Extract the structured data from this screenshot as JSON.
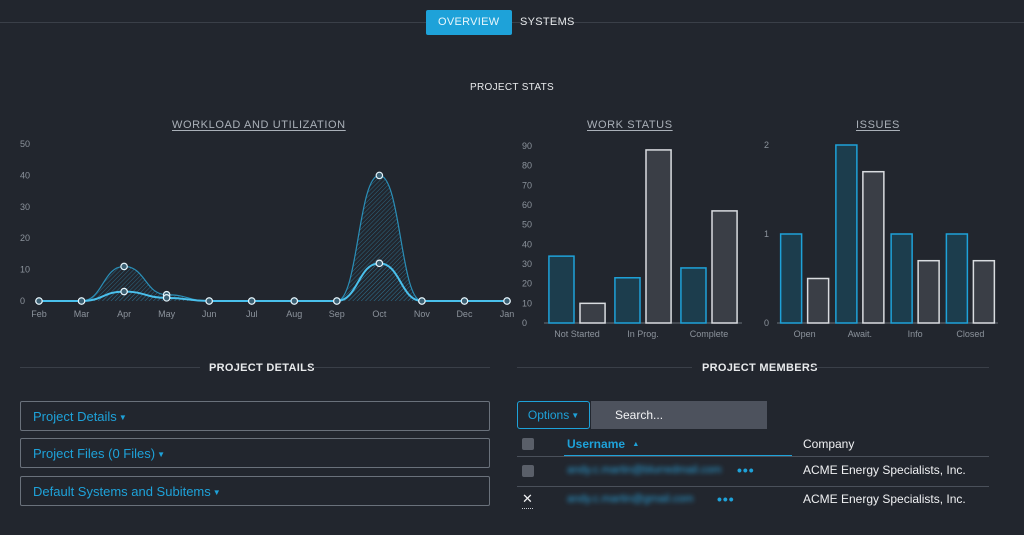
{
  "tabs": {
    "overview": "OVERVIEW",
    "systems": "SYSTEMS"
  },
  "headings": {
    "project_stats": "PROJECT STATS",
    "project_details": "PROJECT DETAILS",
    "project_members": "PROJECT MEMBERS"
  },
  "colors": {
    "accent": "#1ea2d9",
    "series_b": "#ffffff",
    "background": "#22262e"
  },
  "chart_data": [
    {
      "type": "area",
      "title": "WORKLOAD AND UTILIZATION",
      "categories": [
        "Feb",
        "Mar",
        "Apr",
        "May",
        "Jun",
        "Jul",
        "Aug",
        "Sep",
        "Oct",
        "Nov",
        "Dec",
        "Jan"
      ],
      "series": [
        {
          "values": [
            0,
            0,
            11,
            2,
            0,
            0,
            0,
            0,
            40,
            0,
            0,
            0
          ]
        },
        {
          "values": [
            0,
            0,
            3,
            1,
            0,
            0,
            0,
            0,
            12,
            0,
            0,
            0
          ]
        }
      ],
      "yticks": [
        "50",
        "40",
        "30",
        "20",
        "10",
        "0"
      ],
      "ylim": [
        0,
        50
      ],
      "grid": false
    },
    {
      "type": "bar",
      "title": "WORK STATUS",
      "categories": [
        "Not Started",
        "In Prog.",
        "Complete"
      ],
      "series": [
        {
          "values": [
            34,
            23,
            28
          ]
        },
        {
          "values": [
            10,
            88,
            57
          ]
        }
      ],
      "yticks": [
        "90",
        "80",
        "70",
        "60",
        "50",
        "40",
        "30",
        "20",
        "10",
        "0"
      ],
      "ylim": [
        0,
        90
      ]
    },
    {
      "type": "bar",
      "title": "ISSUES",
      "categories": [
        "Open",
        "Await.",
        "Info",
        "Closed"
      ],
      "series": [
        {
          "values": [
            1,
            2,
            1,
            1
          ]
        },
        {
          "values": [
            0.5,
            1.7,
            0.7,
            0.7
          ]
        }
      ],
      "yticks": [
        "2",
        "1",
        "0"
      ],
      "ylim": [
        0,
        2
      ]
    }
  ],
  "details": {
    "items": [
      {
        "label": "Project Details"
      },
      {
        "label": "Project Files (0 Files)"
      },
      {
        "label": "Default Systems and Subitems"
      }
    ],
    "caret": "▼"
  },
  "members": {
    "options_label": "Options",
    "search_placeholder": "Search...",
    "columns": {
      "username": "Username",
      "company": "Company"
    },
    "sort_icon": "▲",
    "rows": [
      {
        "username": "andy.c.martin@blurredmail.com",
        "company": "ACME Energy Specialists, Inc."
      },
      {
        "username": "andy.c.martin@gmail.com",
        "company": "ACME Energy Specialists, Inc."
      }
    ],
    "more_icon": "•••",
    "remove_icon": "✕"
  }
}
